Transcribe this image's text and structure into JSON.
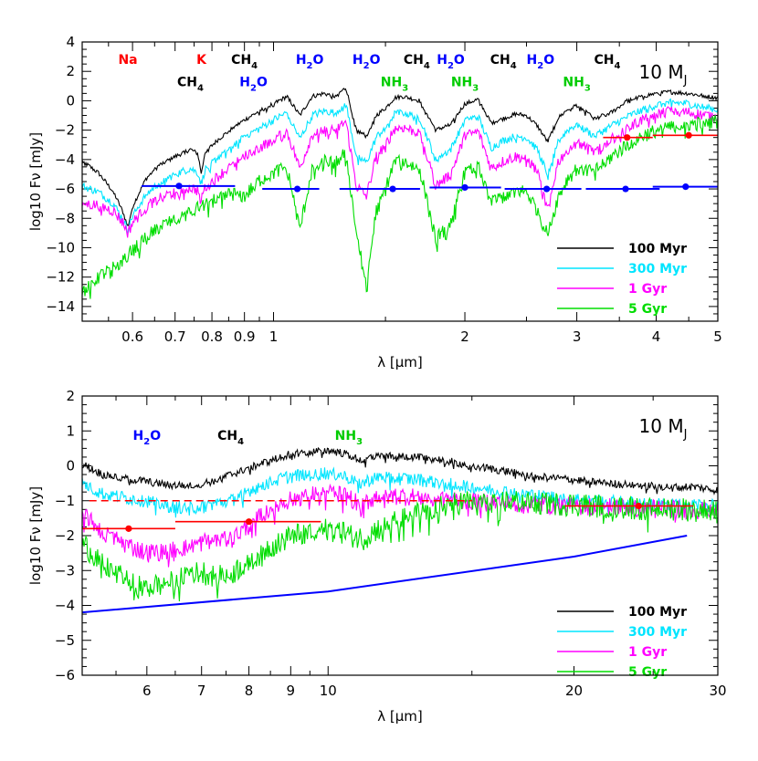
{
  "chart_data": [
    {
      "type": "line",
      "id": "top",
      "mass_label": "10 M_J",
      "xlabel": "λ [μm]",
      "ylabel": "log10 Fν [mJy]",
      "x_scale": "log",
      "xlim": [
        0.5,
        5
      ],
      "ylim": [
        -15,
        4
      ],
      "xtick_values": [
        0.6,
        0.7,
        0.8,
        0.9,
        1,
        2,
        3,
        4,
        5
      ],
      "xtick_labels": [
        "0.6",
        "0.7",
        "0.8",
        "0.9",
        "1",
        "2",
        "3",
        "4",
        "5"
      ],
      "ytick_values": [
        4,
        2,
        0,
        -2,
        -4,
        -6,
        -8,
        -10,
        -12,
        -14
      ],
      "ytick_labels": [
        "4",
        "2",
        "0",
        "−2",
        "−4",
        "−6",
        "−8",
        "−10",
        "−12",
        "−14"
      ],
      "molecules": [
        {
          "main": "Na",
          "sub": "",
          "x": 0.59,
          "y": 2.5,
          "color": "#ff0000"
        },
        {
          "main": "K",
          "sub": "",
          "x": 0.77,
          "y": 2.5,
          "color": "#ff0000"
        },
        {
          "main": "CH",
          "sub": "4",
          "x": 0.9,
          "y": 2.5,
          "color": "#000000"
        },
        {
          "main": "CH",
          "sub": "4",
          "x": 0.74,
          "y": 1.0,
          "color": "#000000"
        },
        {
          "main": "H",
          "sub": "2",
          "after": "O",
          "x": 1.14,
          "y": 2.5,
          "color": "#0000ff"
        },
        {
          "main": "H",
          "sub": "2",
          "after": "O",
          "x": 0.93,
          "y": 1.0,
          "color": "#0000ff"
        },
        {
          "main": "H",
          "sub": "2",
          "after": "O",
          "x": 1.4,
          "y": 2.5,
          "color": "#0000ff"
        },
        {
          "main": "NH",
          "sub": "3",
          "x": 1.55,
          "y": 1.0,
          "color": "#00cc00"
        },
        {
          "main": "CH",
          "sub": "4",
          "x": 1.68,
          "y": 2.5,
          "color": "#000000"
        },
        {
          "main": "H",
          "sub": "2",
          "after": "O",
          "x": 1.9,
          "y": 2.5,
          "color": "#0000ff"
        },
        {
          "main": "NH",
          "sub": "3",
          "x": 2.0,
          "y": 1.0,
          "color": "#00cc00"
        },
        {
          "main": "CH",
          "sub": "4",
          "x": 2.3,
          "y": 2.5,
          "color": "#000000"
        },
        {
          "main": "H",
          "sub": "2",
          "after": "O",
          "x": 2.63,
          "y": 2.5,
          "color": "#0000ff"
        },
        {
          "main": "NH",
          "sub": "3",
          "x": 3.0,
          "y": 1.0,
          "color": "#00cc00"
        },
        {
          "main": "CH",
          "sub": "4",
          "x": 3.35,
          "y": 2.5,
          "color": "#000000"
        }
      ],
      "series": [
        {
          "name": "100 Myr",
          "color": "#000000",
          "x": [
            0.5,
            0.53,
            0.56,
            0.58,
            0.59,
            0.6,
            0.63,
            0.66,
            0.7,
            0.74,
            0.76,
            0.77,
            0.78,
            0.82,
            0.86,
            0.9,
            0.95,
            1.0,
            1.05,
            1.1,
            1.15,
            1.2,
            1.25,
            1.3,
            1.35,
            1.4,
            1.45,
            1.5,
            1.55,
            1.6,
            1.7,
            1.8,
            1.9,
            2.0,
            2.1,
            2.2,
            2.3,
            2.4,
            2.5,
            2.6,
            2.7,
            2.8,
            2.9,
            3.0,
            3.2,
            3.4,
            3.6,
            3.8,
            4.0,
            4.2,
            4.5,
            4.8,
            5.0
          ],
          "y": [
            -4.1,
            -4.9,
            -6.2,
            -7.6,
            -8.6,
            -7.2,
            -5.3,
            -4.4,
            -3.8,
            -3.3,
            -3.6,
            -5.0,
            -3.5,
            -2.6,
            -1.9,
            -1.3,
            -0.7,
            -0.2,
            0.3,
            -1.0,
            0.3,
            0.5,
            0.3,
            0.9,
            -2.0,
            -2.4,
            -1.0,
            -0.5,
            0.2,
            0.3,
            0.0,
            -2.0,
            -1.6,
            -0.2,
            0.1,
            -1.5,
            -1.2,
            -0.9,
            -1.0,
            -1.7,
            -2.8,
            -1.2,
            -0.6,
            -0.3,
            -1.2,
            -0.8,
            0.0,
            0.3,
            0.5,
            0.6,
            0.5,
            0.3,
            0.2
          ]
        },
        {
          "name": "300 Myr",
          "color": "#00e5ff",
          "x": [
            0.5,
            0.53,
            0.56,
            0.58,
            0.59,
            0.6,
            0.63,
            0.66,
            0.7,
            0.74,
            0.76,
            0.77,
            0.78,
            0.82,
            0.86,
            0.9,
            0.95,
            1.0,
            1.05,
            1.1,
            1.15,
            1.2,
            1.25,
            1.3,
            1.35,
            1.4,
            1.45,
            1.5,
            1.55,
            1.6,
            1.7,
            1.8,
            1.9,
            2.0,
            2.1,
            2.2,
            2.3,
            2.4,
            2.5,
            2.6,
            2.7,
            2.8,
            2.9,
            3.0,
            3.2,
            3.4,
            3.6,
            3.8,
            4.0,
            4.2,
            4.5,
            4.8,
            5.0
          ],
          "y": [
            -5.8,
            -6.2,
            -7.0,
            -8.1,
            -8.8,
            -7.8,
            -6.4,
            -5.6,
            -5.0,
            -4.6,
            -4.9,
            -5.7,
            -4.7,
            -3.8,
            -3.1,
            -2.4,
            -1.9,
            -1.3,
            -0.8,
            -2.6,
            -1.0,
            -0.7,
            -0.8,
            -0.2,
            -3.8,
            -4.2,
            -2.5,
            -1.8,
            -0.9,
            -0.8,
            -1.2,
            -4.0,
            -3.3,
            -1.3,
            -1.1,
            -3.2,
            -2.7,
            -2.4,
            -2.5,
            -3.3,
            -5.0,
            -2.8,
            -2.0,
            -1.6,
            -2.4,
            -1.7,
            -1.1,
            -0.6,
            -0.3,
            -0.1,
            -0.2,
            -0.5,
            -0.6
          ]
        },
        {
          "name": "1 Gyr",
          "color": "#ff00ff",
          "x": [
            0.5,
            0.53,
            0.56,
            0.58,
            0.59,
            0.6,
            0.63,
            0.66,
            0.7,
            0.74,
            0.76,
            0.77,
            0.78,
            0.82,
            0.86,
            0.9,
            0.95,
            1.0,
            1.05,
            1.1,
            1.15,
            1.2,
            1.25,
            1.3,
            1.35,
            1.4,
            1.45,
            1.5,
            1.55,
            1.6,
            1.7,
            1.8,
            1.9,
            2.0,
            2.1,
            2.2,
            2.3,
            2.4,
            2.5,
            2.6,
            2.7,
            2.8,
            2.9,
            3.0,
            3.2,
            3.4,
            3.6,
            3.8,
            4.0,
            4.2,
            4.5,
            4.8,
            5.0
          ],
          "y": [
            -7.0,
            -7.1,
            -7.5,
            -8.3,
            -9.0,
            -8.3,
            -7.2,
            -6.6,
            -6.2,
            -5.9,
            -6.1,
            -6.6,
            -5.9,
            -5.1,
            -4.4,
            -3.7,
            -3.2,
            -2.6,
            -2.1,
            -4.6,
            -2.3,
            -1.9,
            -2.0,
            -1.4,
            -5.8,
            -6.5,
            -3.8,
            -3.0,
            -1.9,
            -1.8,
            -2.2,
            -5.8,
            -5.0,
            -2.4,
            -2.1,
            -4.6,
            -4.1,
            -3.8,
            -3.9,
            -4.8,
            -7.5,
            -4.2,
            -3.3,
            -2.8,
            -3.4,
            -2.6,
            -1.9,
            -1.3,
            -0.9,
            -0.7,
            -0.8,
            -1.0,
            -1.1
          ]
        },
        {
          "name": "5 Gyr",
          "color": "#00dd00",
          "x": [
            0.5,
            0.53,
            0.56,
            0.58,
            0.6,
            0.63,
            0.66,
            0.7,
            0.74,
            0.78,
            0.82,
            0.86,
            0.9,
            0.95,
            1.0,
            1.05,
            1.1,
            1.15,
            1.2,
            1.25,
            1.3,
            1.35,
            1.4,
            1.45,
            1.5,
            1.55,
            1.6,
            1.7,
            1.8,
            1.9,
            2.0,
            2.1,
            2.2,
            2.3,
            2.4,
            2.5,
            2.6,
            2.7,
            2.8,
            2.9,
            3.0,
            3.2,
            3.4,
            3.6,
            3.8,
            4.0,
            4.2,
            4.5,
            4.8,
            5.0
          ],
          "y": [
            -13.0,
            -12.0,
            -11.3,
            -10.8,
            -10.2,
            -9.2,
            -8.6,
            -8.1,
            -7.6,
            -7.0,
            -6.6,
            -6.3,
            -6.5,
            -5.4,
            -4.9,
            -4.5,
            -8.8,
            -4.6,
            -4.1,
            -4.2,
            -3.5,
            -9.0,
            -12.5,
            -7.5,
            -6.0,
            -4.2,
            -4.1,
            -4.7,
            -9.5,
            -8.2,
            -4.9,
            -4.4,
            -6.9,
            -6.5,
            -6.1,
            -6.2,
            -7.4,
            -9.2,
            -6.6,
            -5.3,
            -4.6,
            -4.8,
            -3.8,
            -3.0,
            -2.4,
            -2.0,
            -1.7,
            -1.6,
            -1.5,
            -1.4
          ]
        }
      ],
      "blue_bands": [
        {
          "x1": 0.62,
          "x2": 0.87,
          "y": -5.8,
          "xm": 0.71
        },
        {
          "x1": 0.96,
          "x2": 1.18,
          "y": -6.0,
          "xm": 1.09
        },
        {
          "x1": 1.27,
          "x2": 1.7,
          "y": -6.0,
          "xm": 1.54
        },
        {
          "x1": 1.76,
          "x2": 2.28,
          "y": -5.9,
          "xm": 2.0
        },
        {
          "x1": 2.31,
          "x2": 3.05,
          "y": -6.0,
          "xm": 2.69
        },
        {
          "x1": 3.1,
          "x2": 4.05,
          "y": -6.0,
          "xm": 3.58
        },
        {
          "x1": 3.95,
          "x2": 5.0,
          "y": -5.85,
          "xm": 4.45
        }
      ],
      "red_bands": [
        {
          "x1": 3.3,
          "x2": 3.95,
          "y": -2.5,
          "xm": 3.6
        },
        {
          "x1": 3.95,
          "x2": 5.0,
          "y": -2.35,
          "xm": 4.5
        }
      ],
      "legend_location": "lower right"
    },
    {
      "type": "line",
      "id": "bottom",
      "mass_label": "10 M_J",
      "xlabel": "λ [μm]",
      "ylabel": "log10 Fν [mJy]",
      "x_scale": "log",
      "xlim": [
        5,
        30
      ],
      "ylim": [
        -6,
        2
      ],
      "xtick_values": [
        6,
        7,
        8,
        9,
        10,
        20,
        30
      ],
      "xtick_labels": [
        "6",
        "7",
        "8",
        "9",
        "10",
        "20",
        "30"
      ],
      "ytick_values": [
        2,
        1,
        0,
        -1,
        -2,
        -3,
        -4,
        -5,
        -6
      ],
      "ytick_labels": [
        "2",
        "1",
        "0",
        "−1",
        "−2",
        "−3",
        "−4",
        "−5",
        "−6"
      ],
      "molecules": [
        {
          "main": "H",
          "sub": "2",
          "after": "O",
          "x": 6.0,
          "y": 0.75,
          "color": "#0000ff"
        },
        {
          "main": "CH",
          "sub": "4",
          "x": 7.6,
          "y": 0.75,
          "color": "#000000"
        },
        {
          "main": "NH",
          "sub": "3",
          "x": 10.6,
          "y": 0.75,
          "color": "#00cc00"
        }
      ],
      "series": [
        {
          "name": "100 Myr",
          "color": "#000000",
          "x": [
            5.0,
            5.3,
            5.6,
            6.0,
            6.4,
            6.8,
            7.2,
            7.6,
            8.0,
            8.5,
            9.0,
            9.5,
            10.0,
            10.5,
            11.0,
            11.5,
            12.0,
            13,
            14,
            15,
            16,
            18,
            20,
            22,
            24,
            26,
            28,
            30
          ],
          "y": [
            0.05,
            -0.25,
            -0.35,
            -0.45,
            -0.55,
            -0.55,
            -0.45,
            -0.25,
            -0.05,
            0.15,
            0.35,
            0.4,
            0.45,
            0.35,
            0.15,
            0.3,
            0.3,
            0.25,
            0.15,
            0.0,
            -0.1,
            -0.3,
            -0.4,
            -0.5,
            -0.55,
            -0.6,
            -0.6,
            -0.7
          ]
        },
        {
          "name": "300 Myr",
          "color": "#00e5ff",
          "x": [
            5.0,
            5.3,
            5.6,
            6.0,
            6.4,
            6.8,
            7.2,
            7.6,
            8.0,
            8.5,
            9.0,
            9.5,
            10.0,
            10.5,
            11.0,
            11.5,
            12.0,
            13,
            14,
            15,
            16,
            18,
            20,
            22,
            24,
            26,
            28,
            30
          ],
          "y": [
            -0.5,
            -0.8,
            -0.9,
            -1.0,
            -1.15,
            -1.2,
            -1.1,
            -1.0,
            -0.7,
            -0.45,
            -0.3,
            -0.25,
            -0.2,
            -0.3,
            -0.5,
            -0.3,
            -0.35,
            -0.4,
            -0.5,
            -0.6,
            -0.7,
            -0.85,
            -0.95,
            -1.0,
            -1.05,
            -1.1,
            -1.1,
            -1.15
          ]
        },
        {
          "name": "1 Gyr",
          "color": "#ff00ff",
          "x": [
            5.0,
            5.3,
            5.6,
            6.0,
            6.4,
            6.8,
            7.2,
            7.6,
            8.0,
            8.5,
            9.0,
            9.5,
            10.0,
            10.5,
            11.0,
            11.5,
            12.0,
            13,
            14,
            15,
            16,
            18,
            20,
            22,
            24,
            26,
            28,
            30
          ],
          "y": [
            -1.3,
            -1.9,
            -2.2,
            -2.5,
            -2.4,
            -2.3,
            -2.1,
            -2.1,
            -1.7,
            -1.2,
            -0.95,
            -0.8,
            -0.75,
            -0.85,
            -1.1,
            -0.85,
            -0.85,
            -0.9,
            -0.95,
            -1.0,
            -1.05,
            -1.1,
            -1.15,
            -1.15,
            -1.2,
            -1.2,
            -1.25,
            -1.3
          ]
        },
        {
          "name": "5 Gyr",
          "color": "#00dd00",
          "x": [
            5.0,
            5.3,
            5.6,
            6.0,
            6.4,
            6.8,
            7.2,
            7.6,
            8.0,
            8.5,
            9.0,
            9.5,
            10.0,
            10.5,
            11.0,
            11.5,
            12.0,
            13,
            14,
            15,
            16,
            18,
            20,
            22,
            24,
            26,
            28,
            30
          ],
          "y": [
            -2.2,
            -2.8,
            -3.2,
            -3.5,
            -3.3,
            -3.0,
            -3.1,
            -3.1,
            -2.7,
            -2.3,
            -2.0,
            -1.9,
            -1.8,
            -1.9,
            -2.1,
            -1.8,
            -1.6,
            -1.3,
            -1.1,
            -1.0,
            -1.0,
            -1.05,
            -1.1,
            -1.15,
            -1.2,
            -1.2,
            -1.25,
            -1.3
          ]
        }
      ],
      "blue_line": {
        "x": [
          5.0,
          10.0,
          20.0,
          27.5
        ],
        "y": [
          -4.2,
          -3.6,
          -2.6,
          -2.0
        ]
      },
      "red_dashed": {
        "x1": 5.1,
        "x2": 15.0,
        "y": -1.0
      },
      "red_bands": [
        {
          "x1": 5.0,
          "x2": 6.5,
          "y": -1.8,
          "xm": 5.7
        },
        {
          "x1": 6.5,
          "x2": 9.8,
          "y": -1.6,
          "xm": 8.0
        },
        {
          "x1": 19.5,
          "x2": 28.0,
          "y": -1.15,
          "xm": 24.0
        }
      ],
      "legend_location": "lower right"
    }
  ],
  "legend_entries": [
    {
      "name": "100 Myr",
      "color": "#000000"
    },
    {
      "name": "300 Myr",
      "color": "#00e5ff"
    },
    {
      "name": "1 Gyr",
      "color": "#ff00ff"
    },
    {
      "name": "5 Gyr",
      "color": "#00dd00"
    }
  ],
  "colors": {
    "blue_band": "#0000ff",
    "red_band": "#ff0000"
  }
}
